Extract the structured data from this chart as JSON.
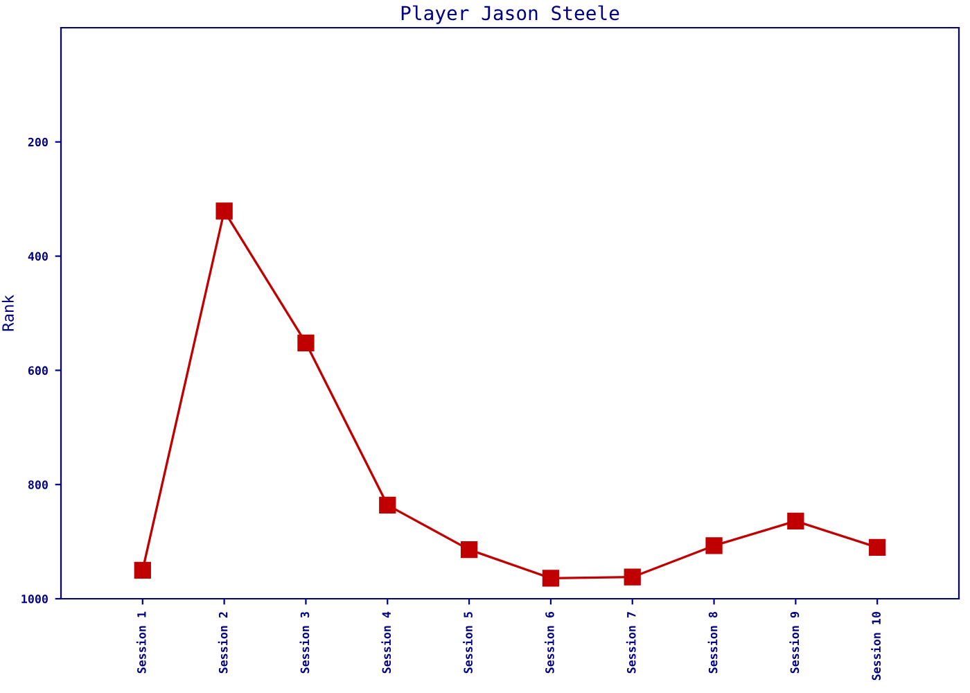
{
  "chart_data": {
    "type": "line",
    "title": "Player Jason Steele",
    "ylabel": "Rank",
    "categories": [
      "Session 1",
      "Session 2",
      "Session 3",
      "Session 4",
      "Session 5",
      "Session 6",
      "Session 7",
      "Session 8",
      "Session 9",
      "Session 10"
    ],
    "series": [
      {
        "color": "#c00000",
        "values": [
          950,
          321,
          552,
          836,
          914,
          964,
          962,
          907,
          864,
          910
        ]
      }
    ],
    "ylim": [
      1000,
      0
    ],
    "yticks": [
      200,
      400,
      600,
      800,
      1000
    ],
    "marker": "square",
    "line_style": "solid",
    "grid": false,
    "legend": false
  }
}
